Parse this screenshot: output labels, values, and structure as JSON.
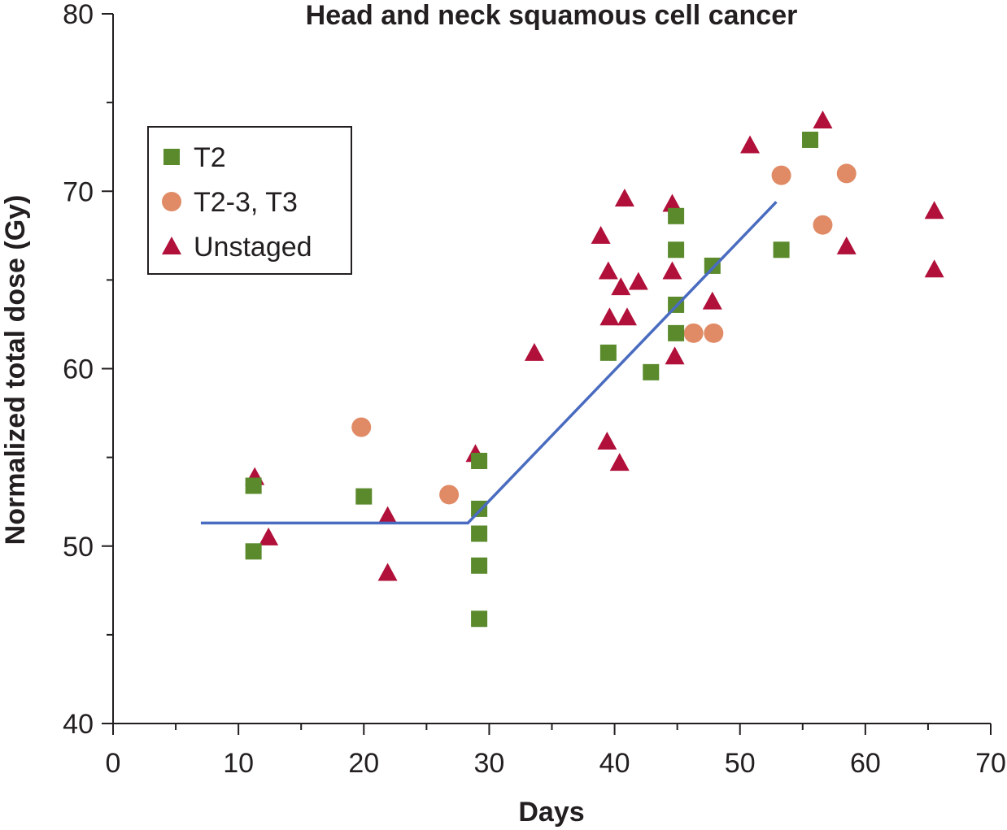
{
  "chart_data": {
    "type": "scatter",
    "title": "Head and neck squamous cell cancer",
    "xlabel": "Days",
    "ylabel": "Normalized total dose (Gy)",
    "xlim": [
      0,
      70
    ],
    "ylim": [
      40,
      80
    ],
    "x_ticks": [
      0,
      10,
      20,
      30,
      40,
      50,
      60,
      70
    ],
    "y_ticks": [
      40,
      50,
      60,
      70,
      80
    ],
    "grid": false,
    "legend_position": "upper-left",
    "series": [
      {
        "name": "T2",
        "marker": "square",
        "color": "#5a8a2c",
        "points": [
          [
            11.2,
            53.4
          ],
          [
            11.2,
            49.7
          ],
          [
            20.0,
            52.8
          ],
          [
            29.2,
            54.8
          ],
          [
            29.2,
            52.1
          ],
          [
            29.2,
            50.7
          ],
          [
            29.2,
            48.9
          ],
          [
            29.2,
            45.9
          ],
          [
            39.5,
            60.9
          ],
          [
            42.9,
            59.8
          ],
          [
            44.9,
            68.6
          ],
          [
            44.9,
            66.7
          ],
          [
            44.9,
            63.6
          ],
          [
            44.9,
            62.0
          ],
          [
            47.8,
            65.8
          ],
          [
            53.3,
            66.7
          ],
          [
            55.6,
            72.9
          ]
        ]
      },
      {
        "name": "T2-3, T3",
        "marker": "circle",
        "color": "#e08b66",
        "points": [
          [
            19.8,
            56.7
          ],
          [
            26.8,
            52.9
          ],
          [
            46.3,
            62.0
          ],
          [
            47.9,
            62.0
          ],
          [
            53.3,
            70.9
          ],
          [
            56.6,
            68.1
          ],
          [
            58.5,
            71.0
          ]
        ]
      },
      {
        "name": "Unstaged",
        "marker": "triangle",
        "color": "#b0103a",
        "points": [
          [
            11.3,
            53.9
          ],
          [
            12.4,
            50.5
          ],
          [
            21.9,
            51.7
          ],
          [
            21.9,
            48.5
          ],
          [
            28.9,
            55.2
          ],
          [
            33.6,
            60.9
          ],
          [
            38.9,
            67.5
          ],
          [
            39.4,
            55.9
          ],
          [
            39.5,
            65.5
          ],
          [
            39.6,
            62.9
          ],
          [
            40.4,
            54.7
          ],
          [
            40.5,
            64.6
          ],
          [
            40.8,
            69.6
          ],
          [
            41.0,
            62.9
          ],
          [
            41.9,
            64.9
          ],
          [
            44.6,
            69.3
          ],
          [
            44.6,
            65.5
          ],
          [
            44.8,
            60.7
          ],
          [
            47.8,
            63.8
          ],
          [
            50.8,
            72.6
          ],
          [
            56.6,
            74.0
          ],
          [
            58.5,
            66.9
          ],
          [
            65.5,
            68.9
          ],
          [
            65.5,
            65.6
          ]
        ]
      }
    ],
    "fit_line": {
      "color": "#4a6cc0",
      "points": [
        [
          7,
          51.3
        ],
        [
          28.3,
          51.3
        ],
        [
          52.9,
          69.4
        ]
      ]
    }
  }
}
